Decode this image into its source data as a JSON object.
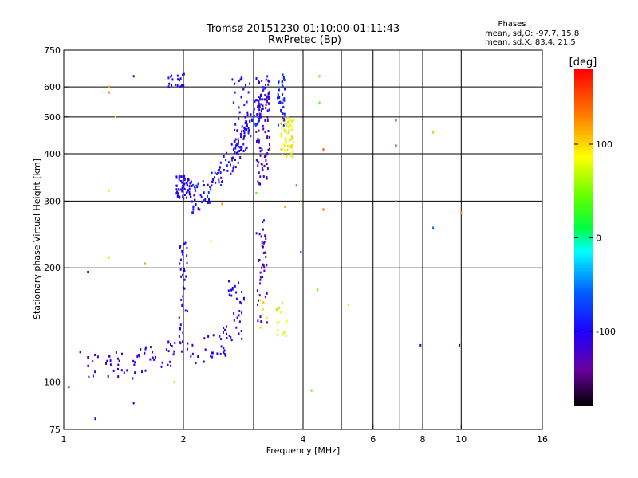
{
  "chart_data": {
    "type": "scatter",
    "title": "Tromsø 20151230 01:10:00-01:11:43",
    "subtitle": "RwPretec (Bp)",
    "stats": {
      "heading": "Phases",
      "line_o": "mean, sd,O: -97.7, 15.8",
      "line_x": "mean, sd,X:  83.4, 21.5"
    },
    "xlabel": "Frequency [MHz]",
    "ylabel": "Stationary phase Virtual Height [km]",
    "x_scale": "log",
    "y_scale": "log",
    "xlim": [
      1,
      16
    ],
    "ylim": [
      75,
      750
    ],
    "x_ticks": [
      1,
      2,
      4,
      6,
      8,
      10,
      16
    ],
    "y_ticks": [
      75,
      100,
      200,
      300,
      400,
      500,
      600,
      750
    ],
    "x_grid": [
      2,
      4,
      6,
      8,
      10
    ],
    "x_minor_grid": [
      3,
      5,
      7,
      9
    ],
    "y_grid": [
      100,
      200,
      300,
      400,
      500,
      600
    ],
    "grid": true,
    "colorbar": {
      "label": "[deg]",
      "range": [
        -180,
        180
      ],
      "ticks": [
        {
          "value": 100,
          "label": "100"
        },
        {
          "value": 0,
          "label": "0"
        },
        {
          "value": -100,
          "label": "-100"
        }
      ]
    },
    "clusters": [
      {
        "name": "o-low-trace",
        "n": 60,
        "x": [
          1.15,
          1.95
        ],
        "y": [
          108,
          122
        ],
        "shape": "curve",
        "phase": [
          -120,
          -95
        ]
      },
      {
        "name": "o-step-2.0",
        "n": 40,
        "x": [
          1.95,
          2.05
        ],
        "y": [
          120,
          240
        ],
        "shape": "box",
        "phase": [
          -115,
          -90
        ]
      },
      {
        "name": "o-low-2.3",
        "n": 30,
        "x": [
          2.05,
          2.6
        ],
        "y": [
          122,
          130
        ],
        "shape": "curve",
        "phase": [
          -115,
          -90
        ]
      },
      {
        "name": "o-step-2.7",
        "n": 30,
        "x": [
          2.6,
          2.85
        ],
        "y": [
          128,
          185
        ],
        "shape": "box",
        "phase": [
          -120,
          -90
        ]
      },
      {
        "name": "o-step-3.1",
        "n": 45,
        "x": [
          3.05,
          3.25
        ],
        "y": [
          140,
          270
        ],
        "shape": "box",
        "phase": [
          -135,
          -105
        ]
      },
      {
        "name": "x-lower-3.3",
        "n": 20,
        "x": [
          3.1,
          3.65
        ],
        "y": [
          130,
          165
        ],
        "shape": "box",
        "phase": [
          60,
          110
        ]
      },
      {
        "name": "o-f-cusp",
        "n": 60,
        "x": [
          1.92,
          2.1
        ],
        "y": [
          305,
          350
        ],
        "shape": "box",
        "phase": [
          -115,
          -90
        ]
      },
      {
        "name": "o-f-trace",
        "n": 170,
        "x": [
          2.1,
          3.3
        ],
        "y": [
          305,
          620
        ],
        "shape": "curve",
        "phase": [
          -125,
          -70
        ]
      },
      {
        "name": "o-f-3.1",
        "n": 80,
        "x": [
          3.05,
          3.3
        ],
        "y": [
          330,
          640
        ],
        "shape": "box",
        "phase": [
          -140,
          -105
        ]
      },
      {
        "name": "o-f-3.5",
        "n": 40,
        "x": [
          3.45,
          3.6
        ],
        "y": [
          470,
          650
        ],
        "shape": "box",
        "phase": [
          -110,
          -70
        ]
      },
      {
        "name": "x-f-trace",
        "n": 55,
        "x": [
          3.5,
          3.8
        ],
        "y": [
          390,
          500
        ],
        "shape": "box",
        "phase": [
          70,
          110
        ]
      },
      {
        "name": "o-f-2.6",
        "n": 45,
        "x": [
          2.65,
          2.95
        ],
        "y": [
          400,
          650
        ],
        "shape": "box",
        "phase": [
          -115,
          -80
        ]
      },
      {
        "name": "o-top-1.9",
        "n": 18,
        "x": [
          1.82,
          2.02
        ],
        "y": [
          600,
          650
        ],
        "shape": "box",
        "phase": [
          -115,
          -95
        ]
      }
    ],
    "isolated_points": [
      {
        "x": 1.03,
        "y": 97,
        "phase": -110
      },
      {
        "x": 1.1,
        "y": 120,
        "phase": -110
      },
      {
        "x": 1.2,
        "y": 80,
        "phase": -110
      },
      {
        "x": 1.3,
        "y": 600,
        "phase": 120
      },
      {
        "x": 1.3,
        "y": 580,
        "phase": 130
      },
      {
        "x": 1.3,
        "y": 320,
        "phase": 100
      },
      {
        "x": 1.3,
        "y": 213,
        "phase": 100
      },
      {
        "x": 1.35,
        "y": 500,
        "phase": 90
      },
      {
        "x": 1.5,
        "y": 640,
        "phase": -110
      },
      {
        "x": 1.6,
        "y": 205,
        "phase": 130
      },
      {
        "x": 1.15,
        "y": 195,
        "phase": -130
      },
      {
        "x": 1.5,
        "y": 88,
        "phase": -110
      },
      {
        "x": 1.9,
        "y": 100,
        "phase": 60
      },
      {
        "x": 2.35,
        "y": 235,
        "phase": 80
      },
      {
        "x": 2.5,
        "y": 295,
        "phase": 120
      },
      {
        "x": 3.05,
        "y": 315,
        "phase": 30
      },
      {
        "x": 3.6,
        "y": 290,
        "phase": 120
      },
      {
        "x": 3.85,
        "y": 330,
        "phase": 150
      },
      {
        "x": 3.95,
        "y": 300,
        "phase": 40
      },
      {
        "x": 3.95,
        "y": 220,
        "phase": -90
      },
      {
        "x": 4.2,
        "y": 95,
        "phase": 40
      },
      {
        "x": 4.35,
        "y": 175,
        "phase": 40
      },
      {
        "x": 4.4,
        "y": 640,
        "phase": 40
      },
      {
        "x": 4.4,
        "y": 545,
        "phase": 40
      },
      {
        "x": 4.5,
        "y": 285,
        "phase": 140
      },
      {
        "x": 4.5,
        "y": 410,
        "phase": 150
      },
      {
        "x": 5.2,
        "y": 160,
        "phase": 70
      },
      {
        "x": 6.85,
        "y": 490,
        "phase": -120
      },
      {
        "x": 6.85,
        "y": 420,
        "phase": -130
      },
      {
        "x": 6.85,
        "y": 300,
        "phase": 30
      },
      {
        "x": 7.9,
        "y": 125,
        "phase": -100
      },
      {
        "x": 8.5,
        "y": 455,
        "phase": 60
      },
      {
        "x": 8.5,
        "y": 255,
        "phase": -60
      },
      {
        "x": 9.9,
        "y": 125,
        "phase": -100
      },
      {
        "x": 10.0,
        "y": 280,
        "phase": 130
      }
    ]
  }
}
